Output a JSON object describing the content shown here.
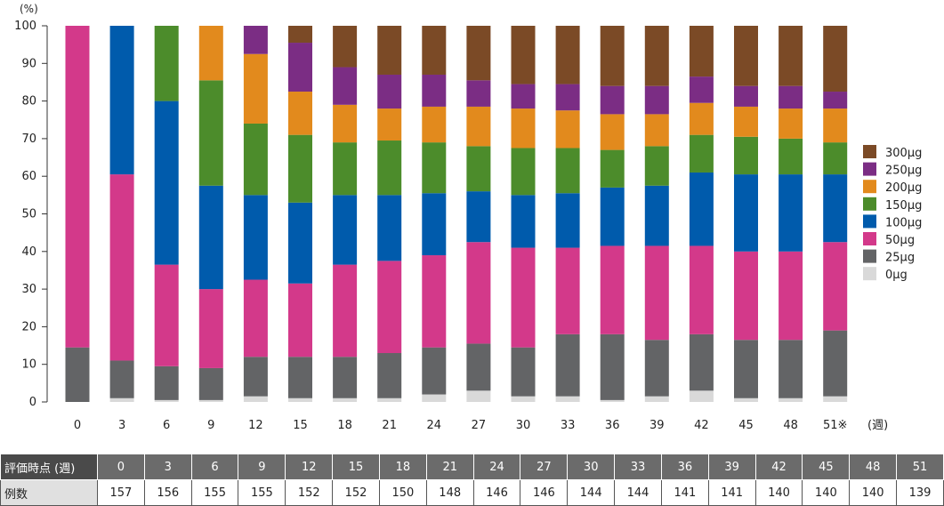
{
  "chart_data": {
    "type": "bar",
    "stacked": true,
    "ylabel": "(%)",
    "xlabel": "(週)",
    "ylim": [
      0,
      100
    ],
    "yticks": [
      "0",
      "10",
      "20",
      "30",
      "40",
      "50",
      "60",
      "70",
      "80",
      "90",
      "100"
    ],
    "categories": [
      "0",
      "3",
      "6",
      "9",
      "12",
      "15",
      "18",
      "21",
      "24",
      "27",
      "30",
      "33",
      "36",
      "39",
      "42",
      "45",
      "48",
      "51"
    ],
    "category_labels": [
      "0",
      "3",
      "6",
      "9",
      "12",
      "15",
      "18",
      "21",
      "24",
      "27",
      "30",
      "33",
      "36",
      "39",
      "42",
      "45",
      "48",
      "51※"
    ],
    "legend_position": "right",
    "series": [
      {
        "name": "0μg",
        "color": "#d9d9d9",
        "values": [
          0,
          1,
          0.5,
          0.5,
          1.5,
          1,
          1,
          1,
          2,
          3,
          1.5,
          1.5,
          0.5,
          1.5,
          3,
          1,
          1,
          1.5
        ]
      },
      {
        "name": "25μg",
        "color": "#636466",
        "values": [
          14.5,
          10,
          9,
          8.5,
          10.5,
          11,
          11,
          12,
          12.5,
          12.5,
          13,
          16.5,
          17.5,
          15,
          15,
          15.5,
          15.5,
          17.5
        ]
      },
      {
        "name": "50μg",
        "color": "#d3398a",
        "values": [
          85.5,
          49.5,
          27,
          21,
          20.5,
          19.5,
          24.5,
          24.5,
          24.5,
          27,
          26.5,
          23,
          23.5,
          25,
          23.5,
          23.5,
          23.5,
          23.5
        ]
      },
      {
        "name": "100μg",
        "color": "#005bac",
        "values": [
          0,
          39.5,
          43.5,
          27.5,
          22.5,
          21.5,
          18.5,
          17.5,
          16.5,
          13.5,
          14,
          14.5,
          15.5,
          16,
          19.5,
          20.5,
          20.5,
          18
        ]
      },
      {
        "name": "150μg",
        "color": "#4c8c2b",
        "values": [
          0,
          0,
          20,
          28,
          19,
          18,
          14,
          14.5,
          13.5,
          12,
          12.5,
          12,
          10,
          10.5,
          10,
          10,
          9.5,
          8.5
        ]
      },
      {
        "name": "200μg",
        "color": "#e28a1d",
        "values": [
          0,
          0,
          0,
          14.5,
          18.5,
          11.5,
          10,
          8.5,
          9.5,
          10.5,
          10.5,
          10,
          9.5,
          8.5,
          8.5,
          8,
          8,
          9
        ]
      },
      {
        "name": "250μg",
        "color": "#7b2d84",
        "values": [
          0,
          0,
          0,
          0,
          7.5,
          13,
          10,
          9,
          8.5,
          7,
          6.5,
          7,
          7.5,
          7.5,
          7,
          5.5,
          6,
          4.5
        ]
      },
      {
        "name": "300μg",
        "color": "#7b4a26",
        "values": [
          0,
          0,
          0,
          0,
          0,
          4.5,
          11,
          13,
          13,
          14.5,
          15.5,
          15.5,
          16,
          16,
          13.5,
          16,
          16,
          17.5
        ]
      }
    ]
  },
  "table": {
    "header_label": "評価時点 (週)",
    "count_label": "例数",
    "weeks": [
      "0",
      "3",
      "6",
      "9",
      "12",
      "15",
      "18",
      "21",
      "24",
      "27",
      "30",
      "33",
      "36",
      "39",
      "42",
      "45",
      "48",
      "51"
    ],
    "counts": [
      "157",
      "156",
      "155",
      "155",
      "152",
      "152",
      "150",
      "148",
      "146",
      "146",
      "144",
      "144",
      "141",
      "141",
      "140",
      "140",
      "140",
      "139"
    ]
  }
}
